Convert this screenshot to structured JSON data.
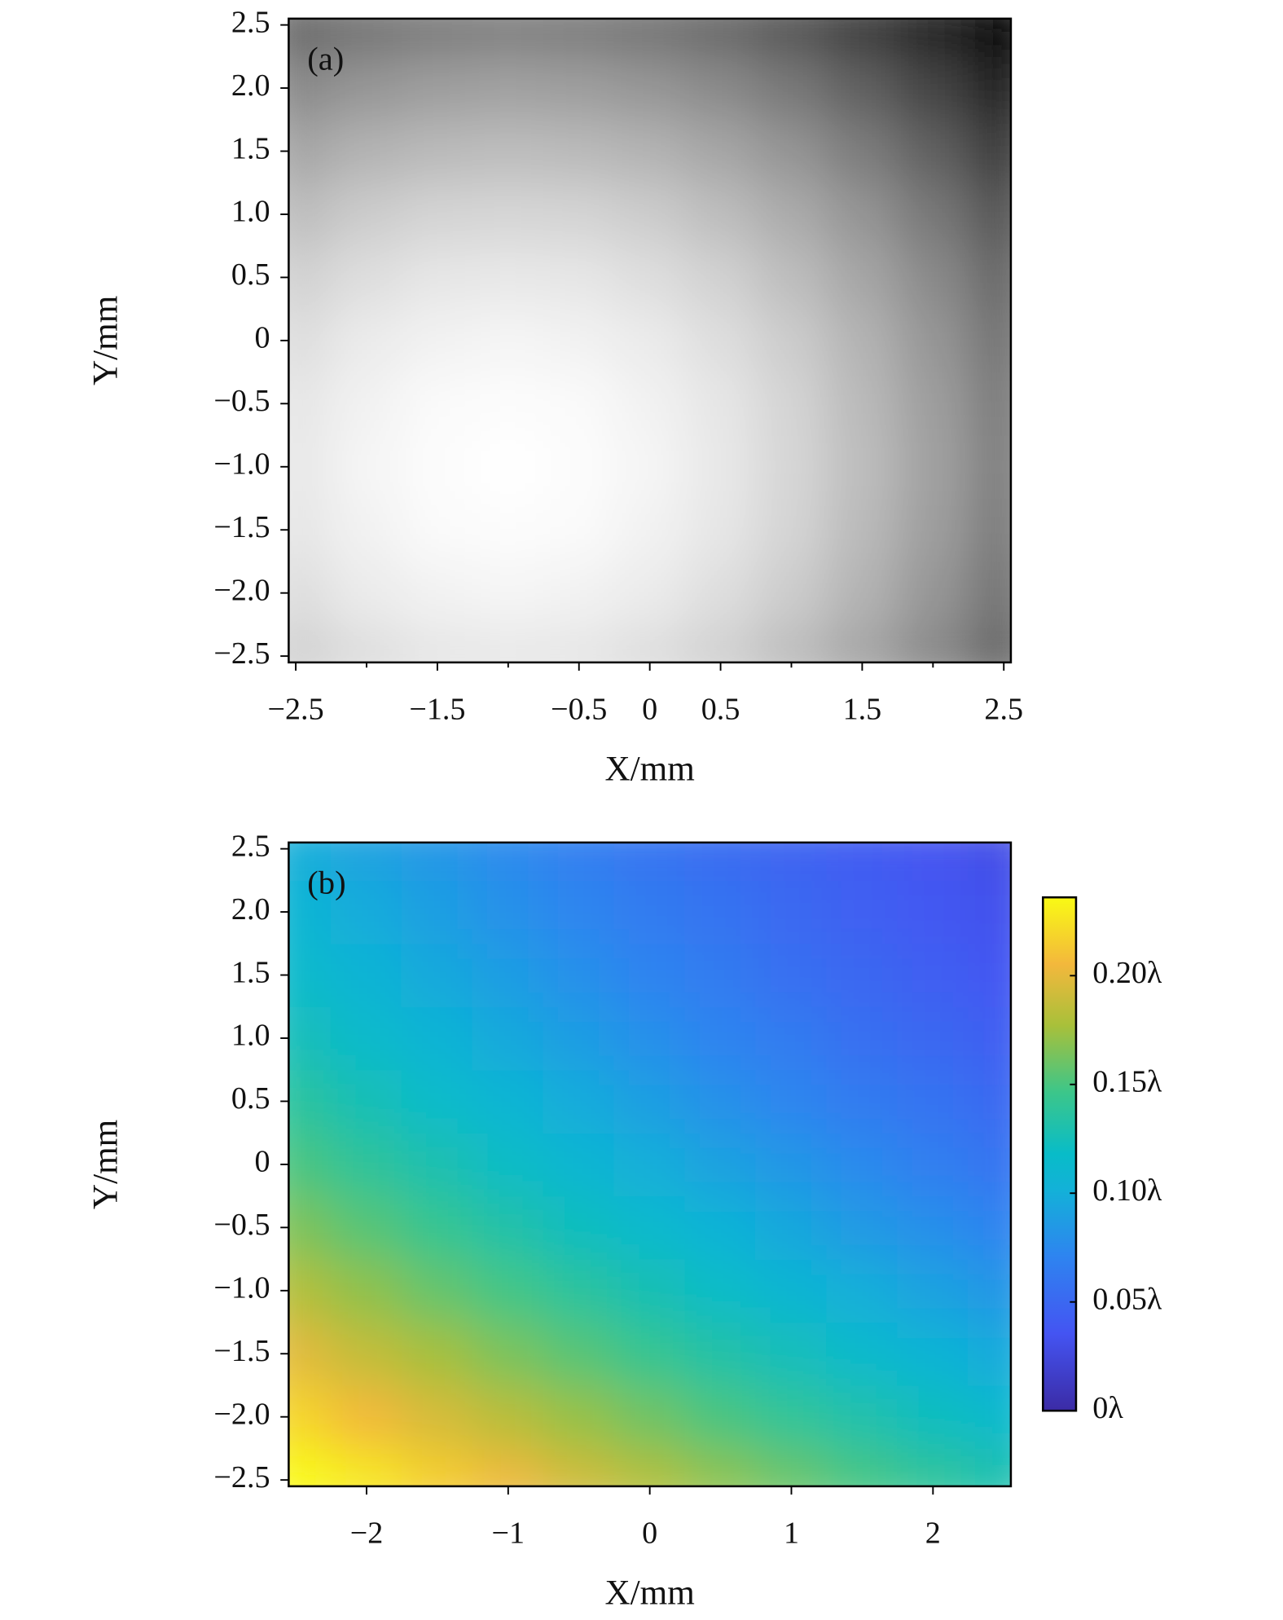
{
  "chart_data": [
    {
      "type": "heatmap",
      "label": "(a)",
      "xlabel": "X/mm",
      "ylabel": "Y/mm",
      "colormap": "gray",
      "zlim": [
        0,
        1
      ],
      "xlim": [
        -2.55,
        2.55
      ],
      "ylim": [
        -2.55,
        2.55
      ],
      "xticks": [
        {
          "value": -2.5,
          "label": "−2.5"
        },
        {
          "value": -1.5,
          "label": "−1.5"
        },
        {
          "value": -0.5,
          "label": "−0.5"
        },
        0,
        0.5,
        1.5,
        2.5
      ],
      "xminorticks": [
        -2,
        -1,
        1,
        2
      ],
      "yticks": [
        2.5,
        {
          "value": 2,
          "label": "2.0"
        },
        1.5,
        {
          "value": 1,
          "label": "1.0"
        },
        0.5,
        0,
        {
          "value": -0.5,
          "label": "−0.5"
        },
        {
          "value": -1,
          "label": "−1.0"
        },
        {
          "value": -1.5,
          "label": "−1.5"
        },
        {
          "value": -2,
          "label": "−2.0"
        },
        {
          "value": -2.5,
          "label": "−2.5"
        }
      ],
      "x": [
        -2.5,
        -2,
        -1.5,
        -1,
        -0.5,
        0,
        0.5,
        1,
        1.5,
        2,
        2.5
      ],
      "y": [
        -2.5,
        -2,
        -1.5,
        -1,
        -0.5,
        0,
        0.5,
        1,
        1.5,
        2,
        2.5
      ],
      "z": [
        [
          0.82,
          0.87,
          0.9,
          0.91,
          0.9,
          0.87,
          0.82,
          0.74,
          0.65,
          0.54,
          0.41
        ],
        [
          0.87,
          0.92,
          0.95,
          0.96,
          0.95,
          0.92,
          0.87,
          0.8,
          0.7,
          0.59,
          0.46
        ],
        [
          0.9,
          0.95,
          0.98,
          0.99,
          0.98,
          0.95,
          0.9,
          0.83,
          0.73,
          0.62,
          0.49
        ],
        [
          0.91,
          0.96,
          0.99,
          1,
          0.99,
          0.96,
          0.91,
          0.84,
          0.74,
          0.63,
          0.5
        ],
        [
          0.9,
          0.95,
          0.98,
          0.99,
          0.98,
          0.95,
          0.9,
          0.83,
          0.73,
          0.62,
          0.49
        ],
        [
          0.87,
          0.92,
          0.95,
          0.96,
          0.95,
          0.92,
          0.87,
          0.8,
          0.7,
          0.59,
          0.46
        ],
        [
          0.82,
          0.87,
          0.9,
          0.91,
          0.9,
          0.87,
          0.82,
          0.74,
          0.65,
          0.54,
          0.41
        ],
        [
          0.74,
          0.8,
          0.83,
          0.84,
          0.83,
          0.8,
          0.74,
          0.67,
          0.58,
          0.47,
          0.34
        ],
        [
          0.65,
          0.7,
          0.73,
          0.74,
          0.73,
          0.7,
          0.65,
          0.58,
          0.49,
          0.38,
          0.24
        ],
        [
          0.54,
          0.59,
          0.62,
          0.63,
          0.62,
          0.59,
          0.54,
          0.47,
          0.38,
          0.27,
          0.13
        ],
        [
          0.41,
          0.46,
          0.49,
          0.5,
          0.49,
          0.46,
          0.41,
          0.34,
          0.24,
          0.13,
          0
        ]
      ]
    },
    {
      "type": "heatmap",
      "label": "(b)",
      "xlabel": "X/mm",
      "ylabel": "Y/mm",
      "colormap": "parula",
      "zlim": [
        0,
        0.236
      ],
      "xlim": [
        -2.55,
        2.55
      ],
      "ylim": [
        -2.55,
        2.55
      ],
      "xticks": [
        {
          "value": -2,
          "label": "−2"
        },
        {
          "value": -1,
          "label": "−1"
        },
        0,
        1,
        2
      ],
      "yticks": [
        2.5,
        {
          "value": 2,
          "label": "2.0"
        },
        1.5,
        {
          "value": 1,
          "label": "1.0"
        },
        0.5,
        0,
        {
          "value": -0.5,
          "label": "−0.5"
        },
        {
          "value": -1,
          "label": "−1.0"
        },
        {
          "value": -1.5,
          "label": "−1.5"
        },
        {
          "value": -2,
          "label": "−2.0"
        },
        {
          "value": -2.5,
          "label": "−2.5"
        }
      ],
      "colorbar_ticks": [
        {
          "value": 0,
          "label": "0λ"
        },
        {
          "value": 0.05,
          "label": "0.05λ"
        },
        {
          "value": 0.1,
          "label": "0.10λ"
        },
        {
          "value": 0.15,
          "label": "0.15λ"
        },
        {
          "value": 0.2,
          "label": "0.20λ"
        }
      ],
      "x": [
        -2.5,
        -2,
        -1.5,
        -1,
        -0.5,
        0,
        0.5,
        1,
        1.5,
        2,
        2.5
      ],
      "y": [
        -2.5,
        -2,
        -1.5,
        -1,
        -0.5,
        0,
        0.5,
        1,
        1.5,
        2,
        2.5
      ],
      "z": [
        [
          0.24,
          0.227,
          0.215,
          0.203,
          0.191,
          0.18,
          0.169,
          0.159,
          0.149,
          0.139,
          0.13
        ],
        [
          0.219,
          0.206,
          0.194,
          0.183,
          0.172,
          0.161,
          0.15,
          0.14,
          0.131,
          0.122,
          0.113
        ],
        [
          0.199,
          0.187,
          0.176,
          0.164,
          0.154,
          0.143,
          0.133,
          0.124,
          0.114,
          0.106,
          0.097
        ],
        [
          0.181,
          0.17,
          0.158,
          0.148,
          0.137,
          0.127,
          0.118,
          0.108,
          0.1,
          0.091,
          0.083
        ],
        [
          0.165,
          0.154,
          0.143,
          0.132,
          0.122,
          0.113,
          0.104,
          0.095,
          0.086,
          0.078,
          0.071
        ],
        [
          0.15,
          0.139,
          0.129,
          0.119,
          0.109,
          0.1,
          0.091,
          0.083,
          0.075,
          0.067,
          0.06
        ],
        [
          0.137,
          0.126,
          0.116,
          0.107,
          0.098,
          0.089,
          0.08,
          0.072,
          0.065,
          0.058,
          0.051
        ],
        [
          0.125,
          0.115,
          0.106,
          0.096,
          0.088,
          0.079,
          0.071,
          0.064,
          0.056,
          0.05,
          0.043
        ],
        [
          0.115,
          0.106,
          0.096,
          0.088,
          0.079,
          0.071,
          0.064,
          0.056,
          0.05,
          0.043,
          0.037
        ],
        [
          0.107,
          0.098,
          0.089,
          0.08,
          0.072,
          0.065,
          0.058,
          0.051,
          0.044,
          0.038,
          0.033
        ],
        [
          0.1,
          0.091,
          0.083,
          0.075,
          0.067,
          0.06,
          0.053,
          0.047,
          0.041,
          0.035,
          0.03
        ]
      ]
    }
  ]
}
